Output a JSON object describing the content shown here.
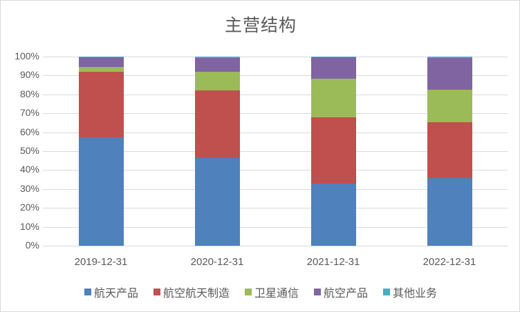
{
  "chart_data": {
    "type": "bar",
    "stacked": true,
    "percent_stacked": true,
    "title": "主营结构",
    "xlabel": "",
    "ylabel": "",
    "ylim": [
      0,
      100
    ],
    "yticks": [
      "0%",
      "10%",
      "20%",
      "30%",
      "40%",
      "50%",
      "60%",
      "70%",
      "80%",
      "90%",
      "100%"
    ],
    "categories": [
      "2019-12-31",
      "2020-12-31",
      "2021-12-31",
      "2022-12-31"
    ],
    "legend_position": "bottom",
    "grid": true,
    "series": [
      {
        "name": "航天产品",
        "color": "#4f81bd",
        "values": [
          57.3,
          46.4,
          32.8,
          35.8
        ]
      },
      {
        "name": "航空航天制造",
        "color": "#c0504d",
        "values": [
          34.7,
          35.6,
          35.1,
          29.5
        ]
      },
      {
        "name": "卫星通信",
        "color": "#9bbb59",
        "values": [
          2.5,
          10.0,
          20.4,
          17.2
        ]
      },
      {
        "name": "航空产品",
        "color": "#8064a2",
        "values": [
          5.2,
          7.2,
          11.2,
          16.8
        ]
      },
      {
        "name": "其他业务",
        "color": "#4bacc6",
        "values": [
          0.3,
          0.8,
          0.5,
          0.7
        ]
      }
    ]
  }
}
